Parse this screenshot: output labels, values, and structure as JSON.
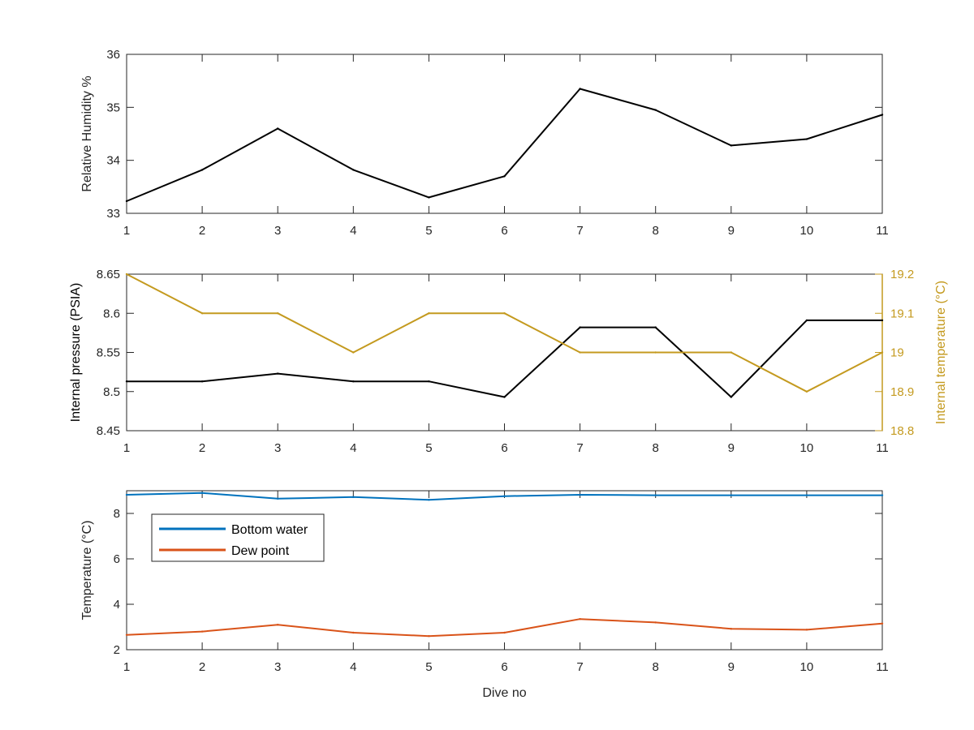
{
  "chart_data": [
    {
      "type": "line",
      "x": [
        1,
        2,
        3,
        4,
        5,
        6,
        7,
        8,
        9,
        10,
        11
      ],
      "xticks": [
        "1",
        "2",
        "3",
        "4",
        "5",
        "6",
        "7",
        "8",
        "9",
        "10",
        "11"
      ],
      "xlim": [
        1,
        11
      ],
      "ylabel": "Relative Humidity %",
      "ylim": [
        33,
        36
      ],
      "yticks": [
        "33",
        "34",
        "35",
        "36"
      ],
      "grid": false,
      "series": [
        {
          "values": [
            33.23,
            33.82,
            34.6,
            33.82,
            33.3,
            33.7,
            35.35,
            34.95,
            34.28,
            34.4,
            34.86
          ],
          "color": "#000000"
        }
      ]
    },
    {
      "type": "line",
      "x": [
        1,
        2,
        3,
        4,
        5,
        6,
        7,
        8,
        9,
        10,
        11
      ],
      "xticks": [
        "1",
        "2",
        "3",
        "4",
        "5",
        "6",
        "7",
        "8",
        "9",
        "10",
        "11"
      ],
      "xlim": [
        1,
        11
      ],
      "ylabel": "Internal pressure (PSIA)",
      "ylim": [
        8.45,
        8.65
      ],
      "yticks": [
        "8.45",
        "8.5",
        "8.55",
        "8.6",
        "8.65"
      ],
      "ylabel_right": "Internal temperature (°C)",
      "ylim_right": [
        18.8,
        19.2
      ],
      "yticks_right": [
        "18.8",
        "18.9",
        "19",
        "19.1",
        "19.2"
      ],
      "right_axis_color": "#c49a1f",
      "grid": false,
      "series": [
        {
          "axis": "left",
          "values": [
            8.513,
            8.513,
            8.523,
            8.513,
            8.513,
            8.493,
            8.582,
            8.582,
            8.493,
            8.591,
            8.591
          ],
          "color": "#000000"
        },
        {
          "axis": "right",
          "values": [
            19.2,
            19.1,
            19.1,
            19.0,
            19.1,
            19.1,
            19.0,
            19.0,
            19.0,
            18.9,
            19.0
          ],
          "color": "#c49a1f"
        }
      ]
    },
    {
      "type": "line",
      "x": [
        1,
        2,
        3,
        4,
        5,
        6,
        7,
        8,
        9,
        10,
        11
      ],
      "xticks": [
        "1",
        "2",
        "3",
        "4",
        "5",
        "6",
        "7",
        "8",
        "9",
        "10",
        "11"
      ],
      "xlim": [
        1,
        11
      ],
      "xlabel": "Dive no",
      "ylabel": "Temperature (°C)",
      "ylim": [
        2,
        9
      ],
      "yticks": [
        "2",
        "4",
        "6",
        "8"
      ],
      "grid": false,
      "legend": "top-left",
      "series": [
        {
          "name": "Bottom water",
          "values": [
            8.82,
            8.9,
            8.65,
            8.72,
            8.6,
            8.76,
            8.82,
            8.8,
            8.8,
            8.8,
            8.8
          ],
          "color": "#0072bd"
        },
        {
          "name": "Dew point",
          "values": [
            2.65,
            2.8,
            3.1,
            2.75,
            2.6,
            2.75,
            3.35,
            3.2,
            2.92,
            2.88,
            3.15
          ],
          "color": "#d95319"
        }
      ]
    }
  ]
}
